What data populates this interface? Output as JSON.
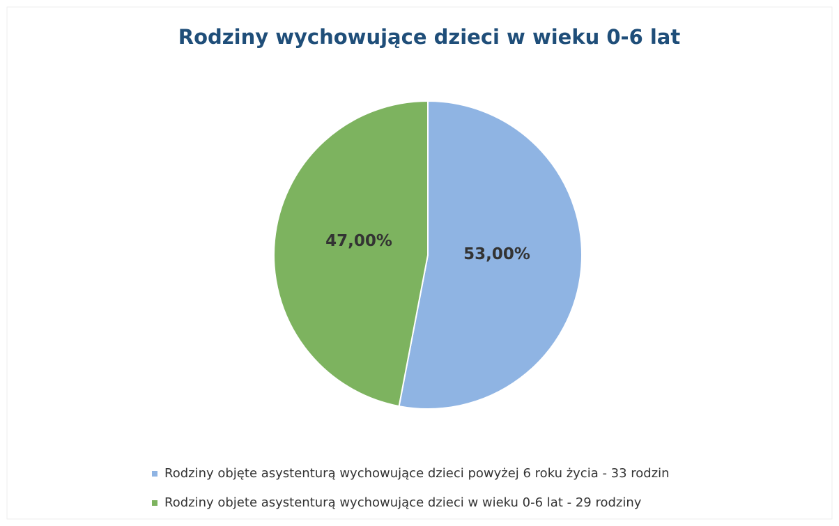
{
  "chart_data": {
    "type": "pie",
    "title": "Rodziny wychowujące dzieci w wieku 0-6 lat",
    "categories": [
      "Rodziny objęte asystenturą wychowujące dzieci powyżej 6 roku życia - 33 rodzin",
      "Rodziny objete asystenturą wychowujące dzieci w wieku 0-6 lat - 29 rodziny"
    ],
    "values": [
      53,
      47
    ],
    "value_labels": [
      "53,00%",
      "47,00%"
    ],
    "colors": [
      "#8fb4e3",
      "#7db35f"
    ],
    "legend": "bottom"
  }
}
